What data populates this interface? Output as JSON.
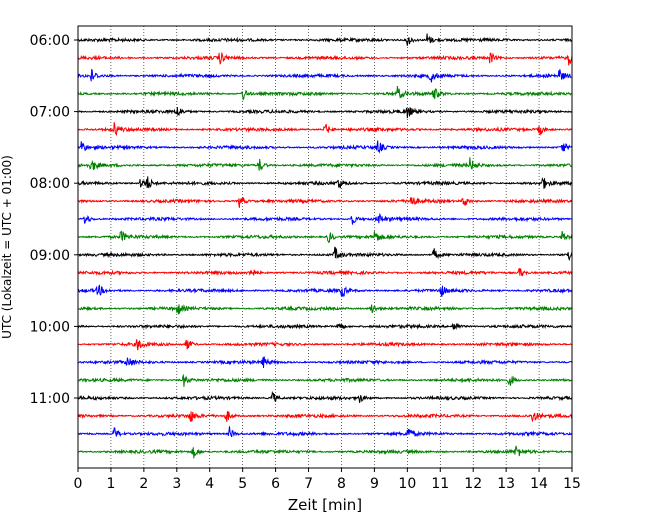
{
  "chart_data": {
    "type": "line",
    "xlabel": "Zeit  [min]",
    "ylabel": "UTC (Lokalzeit = UTC + 01:00)",
    "xlim": [
      0,
      15
    ],
    "xticks": [
      "0",
      "1",
      "2",
      "3",
      "4",
      "5",
      "6",
      "7",
      "8",
      "9",
      "10",
      "11",
      "12",
      "13",
      "14",
      "15"
    ],
    "yticks": [
      "06:00",
      "07:00",
      "08:00",
      "09:00",
      "10:00",
      "11:00"
    ],
    "grid": "vertical dotted",
    "trace_interval_minutes": 15,
    "first_trace": "06:00",
    "trace_count": 24,
    "colors": [
      "#000000",
      "#ff0000",
      "#0000ff",
      "#008000"
    ],
    "events": [
      [
        10.0,
        10.6
      ],
      [
        4.3,
        12.5,
        14.9
      ],
      [
        0.4,
        10.7,
        14.6
      ],
      [
        5.0,
        9.7,
        10.8
      ],
      [
        3.0,
        10.0
      ],
      [
        1.1,
        7.5,
        14.0
      ],
      [
        0.1,
        9.1,
        14.7
      ],
      [
        0.4,
        5.5,
        11.9
      ],
      [
        1.9,
        2.1,
        7.9,
        14.1
      ],
      [
        4.9,
        10.1,
        11.7
      ],
      [
        0.2,
        8.3,
        9.1
      ],
      [
        1.3,
        7.6,
        9.0,
        14.7
      ],
      [
        7.8,
        10.8,
        14.9
      ],
      [
        5.2,
        13.4
      ],
      [
        0.6,
        8.0,
        11.0
      ],
      [
        3.0,
        8.9
      ],
      [
        7.9,
        11.4
      ],
      [
        1.8,
        3.3
      ],
      [
        1.5,
        5.6
      ],
      [
        3.2,
        13.1
      ],
      [
        5.9,
        8.5
      ],
      [
        3.4,
        4.5,
        13.8
      ],
      [
        1.1,
        4.6,
        10.0
      ],
      [
        3.5,
        13.3
      ]
    ]
  }
}
